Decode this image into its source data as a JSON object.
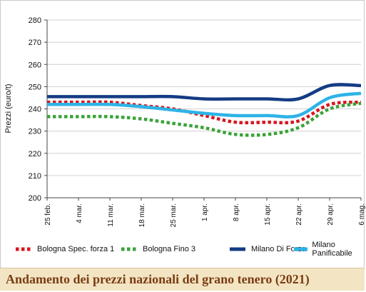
{
  "chart_data": {
    "type": "line",
    "title": "Andamento dei prezzi nazionali del grano tenero (2021)",
    "xlabel": "",
    "ylabel": "Prezzi (euro/t)",
    "ylim": [
      200,
      280
    ],
    "yticks": [
      200,
      210,
      220,
      230,
      240,
      250,
      260,
      270,
      280
    ],
    "categories": [
      "25 feb.",
      "4 mar.",
      "11 mar.",
      "18 mar.",
      "25 mar.",
      "1 apr.",
      "8 apr.",
      "15 apr.",
      "22 apr.",
      "29 apr.",
      "6 mag."
    ],
    "grid": "horizontal",
    "legend_position": "bottom",
    "series": [
      {
        "name": "Bologna Spec. forza 1",
        "style": "dotted",
        "color": "#d7161e",
        "values": [
          243,
          243,
          243,
          241.5,
          240,
          237,
          234,
          234,
          234.5,
          242,
          243
        ]
      },
      {
        "name": "Bologna Fino 3",
        "style": "dotted",
        "color": "#3aa339",
        "values": [
          236.5,
          236.5,
          236.5,
          235.5,
          233.5,
          231.5,
          228.5,
          228.5,
          231.5,
          240,
          242.5
        ]
      },
      {
        "name": "Milano Di Forza",
        "style": "solid",
        "color": "#143c84",
        "values": [
          245.5,
          245.5,
          245.5,
          245.5,
          245.5,
          244.5,
          244.5,
          244.5,
          244.5,
          250.5,
          250.5
        ]
      },
      {
        "name": "Milano Panificabile",
        "style": "solid",
        "color": "#2eb3e6",
        "values": [
          242,
          242,
          242,
          241,
          239.5,
          238,
          237,
          237,
          237,
          245,
          247
        ]
      }
    ]
  }
}
